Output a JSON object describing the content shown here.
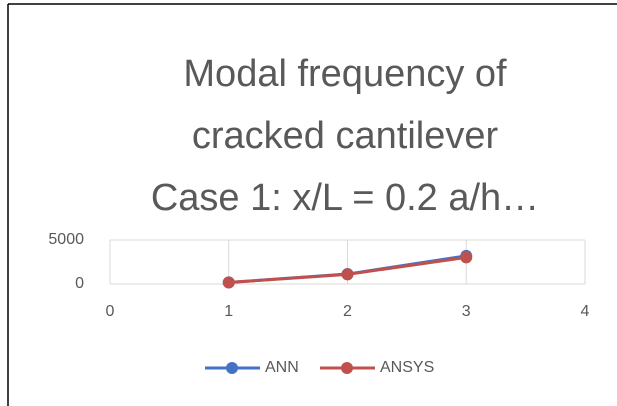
{
  "chart_data": {
    "type": "line",
    "title": [
      "Modal frequency of",
      "cracked cantilever",
      "Case 1: x/L = 0.2   a/h…"
    ],
    "x": [
      1,
      2,
      3
    ],
    "series": [
      {
        "name": "ANN",
        "color": "#4472c4",
        "values": [
          180,
          1130,
          3200
        ]
      },
      {
        "name": "ANSYS",
        "color": "#c0504d",
        "values": [
          170,
          1100,
          3020
        ]
      }
    ],
    "xlim": [
      0,
      4
    ],
    "xticks": [
      0,
      1,
      2,
      3,
      4
    ],
    "ylim": [
      0,
      5000
    ],
    "yticks": [
      0,
      5000
    ],
    "grid": true,
    "legend": "bottom"
  }
}
